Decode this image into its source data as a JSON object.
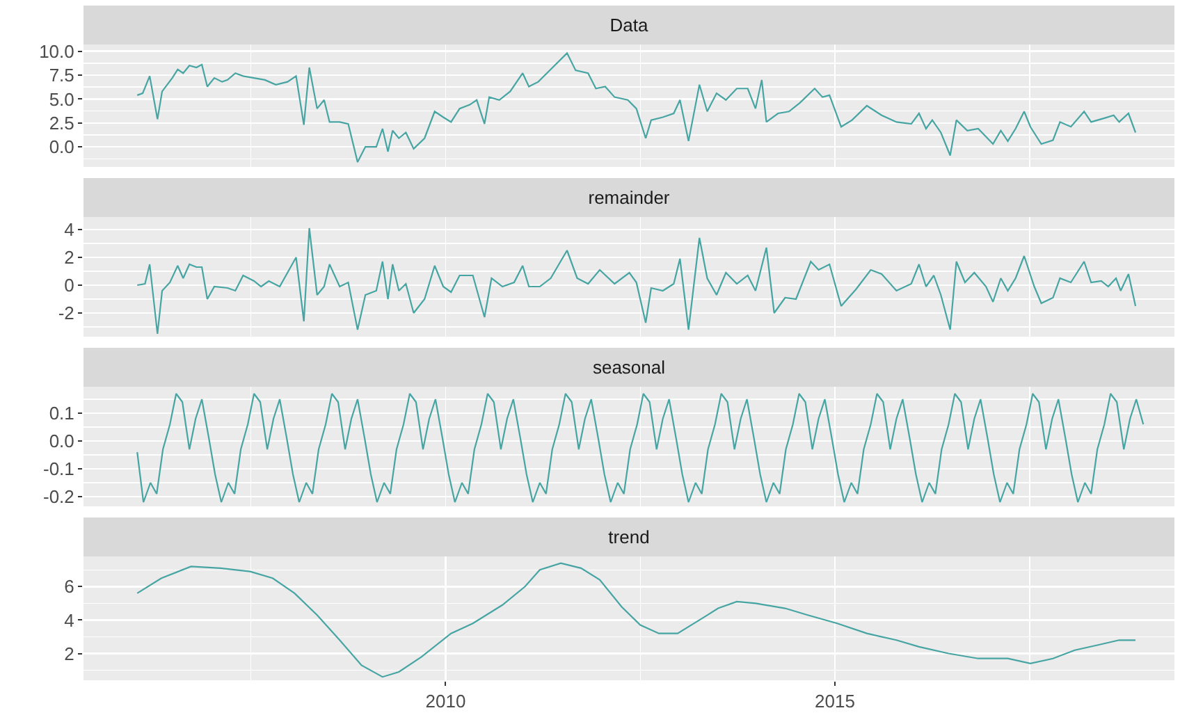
{
  "chart_data": [
    {
      "type": "line",
      "title": "Data",
      "grid": true,
      "tick_labels": "y",
      "xlim": [
        2005.35,
        2019.36
      ],
      "xticks": [
        {
          "value": 2007.5,
          "label": null
        },
        {
          "value": 2010,
          "label": null
        },
        {
          "value": 2012.5,
          "label": null
        },
        {
          "value": 2015,
          "label": null
        },
        {
          "value": 2017.5,
          "label": null
        }
      ],
      "ylim": [
        -2.1,
        10.7
      ],
      "yticks": [
        {
          "value": -1.25,
          "label": null
        },
        {
          "value": 0,
          "label": "0.0"
        },
        {
          "value": 1.25,
          "label": null
        },
        {
          "value": 2.5,
          "label": "2.5"
        },
        {
          "value": 3.75,
          "label": null
        },
        {
          "value": 5,
          "label": "5.0"
        },
        {
          "value": 6.25,
          "label": null
        },
        {
          "value": 7.5,
          "label": "7.5"
        },
        {
          "value": 8.75,
          "label": null
        },
        {
          "value": 10,
          "label": "10.0"
        }
      ],
      "series": [
        {
          "color": "#46a5a3",
          "x": [
            2006.04,
            2006.11,
            2006.2,
            2006.3,
            2006.36,
            2006.49,
            2006.56,
            2006.63,
            2006.71,
            2006.8,
            2006.87,
            2006.94,
            2007.03,
            2007.13,
            2007.2,
            2007.3,
            2007.4,
            2007.54,
            2007.68,
            2007.82,
            2007.97,
            2008.08,
            2008.18,
            2008.25,
            2008.35,
            2008.44,
            2008.51,
            2008.64,
            2008.75,
            2008.87,
            2008.97,
            2009.11,
            2009.19,
            2009.26,
            2009.32,
            2009.4,
            2009.49,
            2009.59,
            2009.73,
            2009.86,
            2009.97,
            2010.07,
            2010.18,
            2010.31,
            2010.4,
            2010.5,
            2010.56,
            2010.69,
            2010.83,
            2010.99,
            2011.07,
            2011.19,
            2011.35,
            2011.56,
            2011.67,
            2011.83,
            2011.93,
            2012.05,
            2012.17,
            2012.34,
            2012.45,
            2012.57,
            2012.64,
            2012.79,
            2012.93,
            2013.01,
            2013.12,
            2013.26,
            2013.36,
            2013.48,
            2013.6,
            2013.74,
            2013.88,
            2013.98,
            2014.06,
            2014.12,
            2014.27,
            2014.41,
            2014.55,
            2014.74,
            2014.84,
            2014.93,
            2015.08,
            2015.22,
            2015.41,
            2015.6,
            2015.79,
            2015.98,
            2016.08,
            2016.17,
            2016.25,
            2016.36,
            2016.48,
            2016.56,
            2016.7,
            2016.84,
            2017.03,
            2017.13,
            2017.22,
            2017.32,
            2017.43,
            2017.51,
            2017.65,
            2017.8,
            2017.89,
            2018.03,
            2018.2,
            2018.29,
            2018.46,
            2018.58,
            2018.65,
            2018.77,
            2018.86
          ],
          "values": [
            5.4,
            5.6,
            7.4,
            2.9,
            5.8,
            7.2,
            8.1,
            7.7,
            8.5,
            8.3,
            8.6,
            6.3,
            7.2,
            6.8,
            7.0,
            7.7,
            7.4,
            7.2,
            7.0,
            6.5,
            6.8,
            7.4,
            2.3,
            8.3,
            4.0,
            4.9,
            2.6,
            2.6,
            2.4,
            -1.6,
            0,
            0,
            1.9,
            -0.5,
            1.7,
            0.9,
            1.5,
            -0.2,
            0.9,
            3.7,
            3.1,
            2.6,
            4.0,
            4.4,
            4.9,
            2.4,
            5.2,
            4.9,
            5.8,
            7.7,
            6.3,
            6.8,
            8.1,
            9.8,
            8.0,
            7.7,
            6.1,
            6.3,
            5.2,
            4.9,
            4.0,
            0.9,
            2.8,
            3.1,
            3.5,
            4.9,
            0.6,
            6.5,
            3.7,
            5.6,
            4.9,
            6.1,
            6.1,
            4.0,
            7.0,
            2.6,
            3.5,
            3.7,
            4.6,
            6.1,
            5.2,
            5.4,
            2.1,
            2.8,
            4.3,
            3.3,
            2.6,
            2.4,
            3.5,
            1.9,
            2.8,
            1.5,
            -0.9,
            2.8,
            1.7,
            1.9,
            0.3,
            1.7,
            0.6,
            1.9,
            3.7,
            2.1,
            0.3,
            0.7,
            2.6,
            2.1,
            3.7,
            2.6,
            3.0,
            3.3,
            2.6,
            3.5,
            1.5
          ]
        }
      ]
    },
    {
      "type": "line",
      "title": "remainder",
      "grid": true,
      "tick_labels": "y",
      "xlim": [
        2005.35,
        2019.36
      ],
      "xticks": [
        {
          "value": 2007.5,
          "label": null
        },
        {
          "value": 2010,
          "label": null
        },
        {
          "value": 2012.5,
          "label": null
        },
        {
          "value": 2015,
          "label": null
        },
        {
          "value": 2017.5,
          "label": null
        }
      ],
      "ylim": [
        -3.7,
        4.9
      ],
      "yticks": [
        {
          "value": -3,
          "label": null
        },
        -2,
        {
          "value": -1,
          "label": null
        },
        0,
        {
          "value": 1,
          "label": null
        },
        2,
        {
          "value": 3,
          "label": null
        },
        4
      ],
      "series": [
        {
          "color": "#46a5a3",
          "x": [
            2006.04,
            2006.14,
            2006.2,
            2006.3,
            2006.36,
            2006.46,
            2006.56,
            2006.63,
            2006.71,
            2006.8,
            2006.87,
            2006.94,
            2007.03,
            2007.2,
            2007.3,
            2007.4,
            2007.54,
            2007.63,
            2007.73,
            2007.87,
            2008.02,
            2008.08,
            2008.18,
            2008.25,
            2008.35,
            2008.44,
            2008.51,
            2008.64,
            2008.75,
            2008.87,
            2008.97,
            2009.11,
            2009.19,
            2009.26,
            2009.32,
            2009.4,
            2009.49,
            2009.59,
            2009.73,
            2009.86,
            2009.97,
            2010.07,
            2010.18,
            2010.35,
            2010.5,
            2010.59,
            2010.73,
            2010.88,
            2010.99,
            2011.07,
            2011.21,
            2011.35,
            2011.56,
            2011.69,
            2011.83,
            2011.98,
            2012.17,
            2012.36,
            2012.45,
            2012.57,
            2012.64,
            2012.79,
            2012.93,
            2013.01,
            2013.12,
            2013.26,
            2013.36,
            2013.48,
            2013.6,
            2013.74,
            2013.88,
            2013.98,
            2014.12,
            2014.22,
            2014.36,
            2014.5,
            2014.69,
            2014.79,
            2014.93,
            2015.08,
            2015.27,
            2015.46,
            2015.6,
            2015.79,
            2015.98,
            2016.08,
            2016.17,
            2016.27,
            2016.36,
            2016.48,
            2016.56,
            2016.67,
            2016.79,
            2016.94,
            2017.03,
            2017.13,
            2017.22,
            2017.32,
            2017.43,
            2017.56,
            2017.65,
            2017.8,
            2017.89,
            2018.03,
            2018.2,
            2018.29,
            2018.42,
            2018.51,
            2018.61,
            2018.67,
            2018.77,
            2018.86
          ],
          "values": [
            0,
            0.1,
            1.5,
            -3.5,
            -0.4,
            0.2,
            1.4,
            0.5,
            1.5,
            1.3,
            1.3,
            -1.0,
            -0.1,
            -0.2,
            -0.4,
            0.7,
            0.3,
            -0.1,
            0.3,
            -0.1,
            1.4,
            2.0,
            -2.6,
            4.1,
            -0.7,
            -0.1,
            1.5,
            -0.1,
            0.2,
            -3.2,
            -0.7,
            -0.4,
            1.7,
            -1.0,
            1.5,
            -0.4,
            0.1,
            -2.0,
            -1.0,
            1.4,
            -0.1,
            -0.5,
            0.7,
            0.7,
            -2.3,
            0.5,
            -0.1,
            0.2,
            1.4,
            -0.1,
            -0.1,
            0.5,
            2.5,
            0.5,
            0.1,
            1.1,
            0.1,
            0.9,
            0.2,
            -2.7,
            -0.2,
            -0.4,
            0.1,
            1.9,
            -3.2,
            3.4,
            0.5,
            -0.7,
            0.9,
            0.1,
            0.7,
            -0.4,
            2.7,
            -2.0,
            -0.9,
            -1.0,
            1.7,
            1.1,
            1.5,
            -1.5,
            -0.3,
            1.1,
            0.8,
            -0.4,
            0.1,
            1.5,
            -0.1,
            0.7,
            -0.7,
            -3.2,
            1.7,
            0.2,
            0.9,
            -0.1,
            -1.2,
            0.5,
            -0.4,
            0.5,
            2.1,
            -0.1,
            -1.3,
            -0.9,
            0.5,
            0.2,
            1.7,
            0.2,
            0.3,
            -0.1,
            0.5,
            -0.4,
            0.8,
            -1.5
          ]
        }
      ]
    },
    {
      "type": "line",
      "title": "seasonal",
      "grid": true,
      "tick_labels": "y",
      "xlim": [
        2005.35,
        2019.36
      ],
      "xticks": [
        {
          "value": 2007.5,
          "label": null
        },
        {
          "value": 2010,
          "label": null
        },
        {
          "value": 2012.5,
          "label": null
        },
        {
          "value": 2015,
          "label": null
        },
        {
          "value": 2017.5,
          "label": null
        }
      ],
      "ylim": [
        -0.235,
        0.195
      ],
      "yticks": [
        {
          "value": -0.2,
          "label": "-0.2"
        },
        {
          "value": -0.15,
          "label": null
        },
        {
          "value": -0.1,
          "label": "-0.1"
        },
        {
          "value": -0.05,
          "label": null
        },
        {
          "value": 0,
          "label": "0.0"
        },
        {
          "value": 0.05,
          "label": null
        },
        {
          "value": 0.1,
          "label": "0.1"
        },
        {
          "value": 0.15,
          "label": null
        }
      ],
      "series": [
        {
          "color": "#46a5a3",
          "x": [
            2006.04,
            2006.12,
            2006.21,
            2006.29,
            2006.37,
            2006.46,
            2006.54,
            2006.62,
            2006.71,
            2006.79,
            2006.87,
            2006.96,
            2007.04,
            2007.12,
            2007.21,
            2007.29,
            2007.37,
            2007.46,
            2007.54,
            2007.62,
            2007.71,
            2007.79,
            2007.87,
            2007.96,
            2008.04,
            2008.12,
            2008.21,
            2008.29,
            2008.37,
            2008.46,
            2008.54,
            2008.62,
            2008.71,
            2008.79,
            2008.87,
            2008.96,
            2009.04,
            2009.12,
            2009.21,
            2009.29,
            2009.37,
            2009.46,
            2009.54,
            2009.62,
            2009.71,
            2009.79,
            2009.87,
            2009.96,
            2010.04,
            2010.12,
            2010.21,
            2010.29,
            2010.37,
            2010.46,
            2010.54,
            2010.62,
            2010.71,
            2010.79,
            2010.87,
            2010.96,
            2011.04,
            2011.12,
            2011.21,
            2011.29,
            2011.37,
            2011.46,
            2011.54,
            2011.62,
            2011.71,
            2011.79,
            2011.87,
            2011.96,
            2012.04,
            2012.12,
            2012.21,
            2012.29,
            2012.37,
            2012.46,
            2012.54,
            2012.62,
            2012.71,
            2012.79,
            2012.87,
            2012.96,
            2013.04,
            2013.12,
            2013.21,
            2013.29,
            2013.37,
            2013.46,
            2013.54,
            2013.62,
            2013.71,
            2013.79,
            2013.87,
            2013.96,
            2014.04,
            2014.12,
            2014.21,
            2014.29,
            2014.37,
            2014.46,
            2014.54,
            2014.62,
            2014.71,
            2014.79,
            2014.87,
            2014.96,
            2015.04,
            2015.12,
            2015.21,
            2015.29,
            2015.37,
            2015.46,
            2015.54,
            2015.62,
            2015.71,
            2015.79,
            2015.87,
            2015.96,
            2016.04,
            2016.12,
            2016.21,
            2016.29,
            2016.37,
            2016.46,
            2016.54,
            2016.62,
            2016.71,
            2016.79,
            2016.87,
            2016.96,
            2017.04,
            2017.12,
            2017.21,
            2017.29,
            2017.37,
            2017.46,
            2017.54,
            2017.62,
            2017.71,
            2017.79,
            2017.87,
            2017.96,
            2018.04,
            2018.12,
            2018.21,
            2018.29,
            2018.37,
            2018.46,
            2018.54,
            2018.62,
            2018.71,
            2018.79,
            2018.87,
            2018.96
          ],
          "values": [
            -0.04,
            -0.22,
            -0.15,
            -0.19,
            -0.03,
            0.06,
            0.17,
            0.14,
            -0.03,
            0.08,
            0.15,
            0.01,
            -0.12,
            -0.22,
            -0.15,
            -0.19,
            -0.03,
            0.06,
            0.17,
            0.14,
            -0.03,
            0.08,
            0.15,
            0.01,
            -0.12,
            -0.22,
            -0.15,
            -0.19,
            -0.03,
            0.06,
            0.17,
            0.14,
            -0.03,
            0.08,
            0.15,
            0.01,
            -0.12,
            -0.22,
            -0.15,
            -0.19,
            -0.03,
            0.06,
            0.17,
            0.14,
            -0.03,
            0.08,
            0.15,
            0.01,
            -0.12,
            -0.22,
            -0.15,
            -0.19,
            -0.03,
            0.06,
            0.17,
            0.14,
            -0.03,
            0.08,
            0.15,
            0.01,
            -0.12,
            -0.22,
            -0.15,
            -0.19,
            -0.03,
            0.06,
            0.17,
            0.14,
            -0.03,
            0.08,
            0.15,
            0.01,
            -0.12,
            -0.22,
            -0.15,
            -0.19,
            -0.03,
            0.06,
            0.17,
            0.14,
            -0.03,
            0.08,
            0.15,
            0.01,
            -0.12,
            -0.22,
            -0.15,
            -0.19,
            -0.03,
            0.06,
            0.17,
            0.14,
            -0.03,
            0.08,
            0.15,
            0.01,
            -0.12,
            -0.22,
            -0.15,
            -0.19,
            -0.03,
            0.06,
            0.17,
            0.14,
            -0.03,
            0.08,
            0.15,
            0.01,
            -0.12,
            -0.22,
            -0.15,
            -0.19,
            -0.03,
            0.06,
            0.17,
            0.14,
            -0.03,
            0.08,
            0.15,
            0.01,
            -0.12,
            -0.22,
            -0.15,
            -0.19,
            -0.03,
            0.06,
            0.17,
            0.14,
            -0.03,
            0.08,
            0.15,
            0.01,
            -0.12,
            -0.22,
            -0.15,
            -0.19,
            -0.03,
            0.06,
            0.17,
            0.14,
            -0.03,
            0.08,
            0.15,
            0.01,
            -0.12,
            -0.22,
            -0.15,
            -0.19,
            -0.03,
            0.06,
            0.17,
            0.14,
            -0.03,
            0.08,
            0.15,
            0.06
          ]
        }
      ]
    },
    {
      "type": "line",
      "title": "trend",
      "grid": true,
      "xlim": [
        2005.35,
        2019.36
      ],
      "xticks": [
        {
          "value": 2007.5,
          "label": null
        },
        {
          "value": 2010,
          "label": "2010"
        },
        {
          "value": 2012.5,
          "label": null
        },
        {
          "value": 2015,
          "label": "2015"
        },
        {
          "value": 2017.5,
          "label": null
        }
      ],
      "ylim": [
        0.4,
        7.8
      ],
      "yticks": [
        {
          "value": 1,
          "label": null
        },
        2,
        {
          "value": 3,
          "label": null
        },
        4,
        {
          "value": 5,
          "label": null
        },
        6,
        {
          "value": 7,
          "label": null
        }
      ],
      "series": [
        {
          "color": "#46a5a3",
          "x": [
            2006.04,
            2006.35,
            2006.73,
            2007.11,
            2007.49,
            2007.78,
            2008.06,
            2008.35,
            2008.64,
            2008.92,
            2009.19,
            2009.4,
            2009.69,
            2010.07,
            2010.35,
            2010.73,
            2011.02,
            2011.21,
            2011.48,
            2011.74,
            2011.98,
            2012.26,
            2012.5,
            2012.74,
            2012.98,
            2013.26,
            2013.5,
            2013.74,
            2013.98,
            2014.36,
            2014.65,
            2015.03,
            2015.41,
            2015.79,
            2016.08,
            2016.46,
            2016.84,
            2017.22,
            2017.51,
            2017.8,
            2018.08,
            2018.37,
            2018.65,
            2018.86
          ],
          "values": [
            5.6,
            6.5,
            7.2,
            7.1,
            6.9,
            6.5,
            5.6,
            4.3,
            2.8,
            1.3,
            0.6,
            0.9,
            1.8,
            3.2,
            3.8,
            4.9,
            6.0,
            7.0,
            7.4,
            7.1,
            6.4,
            4.8,
            3.7,
            3.2,
            3.2,
            4.0,
            4.7,
            5.1,
            5.0,
            4.7,
            4.3,
            3.8,
            3.2,
            2.8,
            2.4,
            2.0,
            1.7,
            1.7,
            1.4,
            1.7,
            2.2,
            2.5,
            2.8,
            2.8
          ]
        }
      ]
    }
  ]
}
